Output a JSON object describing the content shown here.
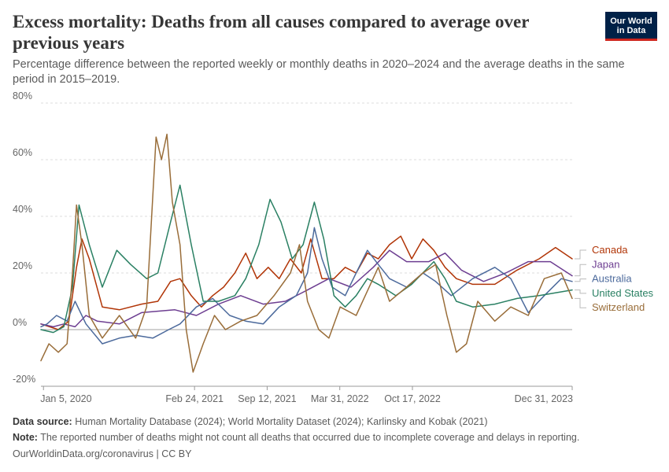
{
  "header": {
    "title": "Excess mortality: Deaths from all causes compared to average over previous years",
    "subtitle": "Percentage difference between the reported weekly or monthly deaths in 2020–2024 and the average deaths in the same period in 2015–2019.",
    "logo_line1": "Our World",
    "logo_line2": "in Data"
  },
  "footer": {
    "source_label": "Data source:",
    "source_text": "Human Mortality Database (2024); World Mortality Dataset (2024); Karlinsky and Kobak (2021)",
    "note_label": "Note:",
    "note_text": "The reported number of deaths might not count all deaths that occurred due to incomplete coverage and delays in reporting.",
    "url": "OurWorldinData.org/coronavirus",
    "license": "| CC BY"
  },
  "colors": {
    "logo_bg": "#002147",
    "logo_accent": "#ce261e",
    "grid": "#dddddd",
    "zero_line": "#a1a1a1"
  },
  "chart_data": {
    "type": "line",
    "title": "Excess mortality: Deaths from all causes compared to average over previous years",
    "ylabel": "",
    "xlabel": "",
    "y_unit": "%",
    "ylim": [
      -20,
      80
    ],
    "y_ticks": [
      -20,
      0,
      20,
      40,
      60,
      80
    ],
    "y_tick_labels": [
      "-20%",
      "0%",
      "20%",
      "40%",
      "60%",
      "80%"
    ],
    "xlim": [
      "2019-12-29",
      "2023-12-31"
    ],
    "x_ticks": [
      "2020-01-05",
      "2021-02-24",
      "2021-09-12",
      "2022-03-31",
      "2022-10-17",
      "2023-12-31"
    ],
    "x_tick_labels": [
      "Jan 5, 2020",
      "Feb 24, 2021",
      "Sep 12, 2021",
      "Mar 31, 2022",
      "Oct 17, 2022",
      "Dec 31, 2023"
    ],
    "grid": "horizontal dashed",
    "legend": "right, labels at line ends",
    "series": [
      {
        "name": "Canada",
        "color": "#b13507",
        "points": [
          [
            "2019-12-29",
            2
          ],
          [
            "2020-02-15",
            0
          ],
          [
            "2020-03-15",
            3
          ],
          [
            "2020-04-05",
            22
          ],
          [
            "2020-04-20",
            32
          ],
          [
            "2020-05-10",
            25
          ],
          [
            "2020-06-15",
            8
          ],
          [
            "2020-08-01",
            7
          ],
          [
            "2020-10-01",
            9
          ],
          [
            "2020-11-15",
            10
          ],
          [
            "2020-12-20",
            17
          ],
          [
            "2021-01-15",
            18
          ],
          [
            "2021-02-15",
            12
          ],
          [
            "2021-03-15",
            8
          ],
          [
            "2021-04-15",
            12
          ],
          [
            "2021-05-15",
            15
          ],
          [
            "2021-06-15",
            20
          ],
          [
            "2021-07-15",
            27
          ],
          [
            "2021-08-15",
            18
          ],
          [
            "2021-09-15",
            22
          ],
          [
            "2021-10-15",
            18
          ],
          [
            "2021-11-15",
            25
          ],
          [
            "2021-12-15",
            20
          ],
          [
            "2022-01-10",
            32
          ],
          [
            "2022-02-10",
            18
          ],
          [
            "2022-03-15",
            18
          ],
          [
            "2022-04-15",
            22
          ],
          [
            "2022-05-15",
            20
          ],
          [
            "2022-06-15",
            27
          ],
          [
            "2022-07-15",
            25
          ],
          [
            "2022-08-15",
            30
          ],
          [
            "2022-09-15",
            33
          ],
          [
            "2022-10-15",
            25
          ],
          [
            "2022-11-15",
            32
          ],
          [
            "2022-12-15",
            28
          ],
          [
            "2023-01-15",
            22
          ],
          [
            "2023-02-15",
            18
          ],
          [
            "2023-04-01",
            16
          ],
          [
            "2023-06-01",
            16
          ],
          [
            "2023-08-01",
            21
          ],
          [
            "2023-10-01",
            25
          ],
          [
            "2023-11-15",
            29
          ],
          [
            "2023-12-31",
            25
          ]
        ]
      },
      {
        "name": "Japan",
        "color": "#6d3e91",
        "points": [
          [
            "2019-12-29",
            2
          ],
          [
            "2020-02-01",
            1
          ],
          [
            "2020-03-01",
            2
          ],
          [
            "2020-04-01",
            1
          ],
          [
            "2020-05-01",
            5
          ],
          [
            "2020-06-01",
            3
          ],
          [
            "2020-08-01",
            2
          ],
          [
            "2020-10-01",
            6
          ],
          [
            "2021-01-01",
            7
          ],
          [
            "2021-03-01",
            5
          ],
          [
            "2021-05-01",
            9
          ],
          [
            "2021-07-01",
            12
          ],
          [
            "2021-09-01",
            9
          ],
          [
            "2021-11-01",
            10
          ],
          [
            "2022-01-01",
            14
          ],
          [
            "2022-03-01",
            18
          ],
          [
            "2022-05-01",
            15
          ],
          [
            "2022-07-01",
            22
          ],
          [
            "2022-08-15",
            28
          ],
          [
            "2022-10-01",
            24
          ],
          [
            "2022-12-01",
            24
          ],
          [
            "2023-01-15",
            27
          ],
          [
            "2023-03-01",
            21
          ],
          [
            "2023-05-01",
            17
          ],
          [
            "2023-07-01",
            20
          ],
          [
            "2023-09-01",
            24
          ],
          [
            "2023-11-01",
            24
          ],
          [
            "2023-12-31",
            19
          ]
        ]
      },
      {
        "name": "Australia",
        "color": "#4c6a9c",
        "points": [
          [
            "2019-12-29",
            1
          ],
          [
            "2020-01-15",
            2
          ],
          [
            "2020-02-10",
            5
          ],
          [
            "2020-03-10",
            3
          ],
          [
            "2020-04-01",
            10
          ],
          [
            "2020-05-01",
            2
          ],
          [
            "2020-06-15",
            -5
          ],
          [
            "2020-08-01",
            -3
          ],
          [
            "2020-09-15",
            -2
          ],
          [
            "2020-11-01",
            -3
          ],
          [
            "2020-12-15",
            0
          ],
          [
            "2021-01-15",
            2
          ],
          [
            "2021-03-01",
            8
          ],
          [
            "2021-04-15",
            11
          ],
          [
            "2021-06-01",
            5
          ],
          [
            "2021-07-15",
            3
          ],
          [
            "2021-09-01",
            2
          ],
          [
            "2021-10-15",
            8
          ],
          [
            "2021-12-01",
            12
          ],
          [
            "2022-01-01",
            20
          ],
          [
            "2022-01-20",
            36
          ],
          [
            "2022-02-10",
            25
          ],
          [
            "2022-03-10",
            15
          ],
          [
            "2022-04-15",
            12
          ],
          [
            "2022-05-15",
            20
          ],
          [
            "2022-06-15",
            28
          ],
          [
            "2022-07-15",
            23
          ],
          [
            "2022-08-15",
            18
          ],
          [
            "2022-10-01",
            15
          ],
          [
            "2022-11-15",
            20
          ],
          [
            "2022-12-20",
            17
          ],
          [
            "2023-02-01",
            12
          ],
          [
            "2023-04-01",
            18
          ],
          [
            "2023-06-01",
            22
          ],
          [
            "2023-07-15",
            18
          ],
          [
            "2023-09-01",
            6
          ],
          [
            "2023-10-15",
            12
          ],
          [
            "2023-12-01",
            18
          ],
          [
            "2023-12-31",
            17
          ]
        ]
      },
      {
        "name": "United States",
        "color": "#2a8063",
        "points": [
          [
            "2019-12-29",
            0
          ],
          [
            "2020-02-01",
            -1
          ],
          [
            "2020-03-01",
            1
          ],
          [
            "2020-03-25",
            15
          ],
          [
            "2020-04-12",
            44
          ],
          [
            "2020-05-10",
            30
          ],
          [
            "2020-06-15",
            15
          ],
          [
            "2020-07-25",
            28
          ],
          [
            "2020-09-01",
            23
          ],
          [
            "2020-10-15",
            18
          ],
          [
            "2020-11-15",
            20
          ],
          [
            "2020-12-20",
            38
          ],
          [
            "2021-01-15",
            51
          ],
          [
            "2021-02-15",
            30
          ],
          [
            "2021-03-20",
            10
          ],
          [
            "2021-05-01",
            10
          ],
          [
            "2021-06-15",
            12
          ],
          [
            "2021-07-15",
            18
          ],
          [
            "2021-08-20",
            30
          ],
          [
            "2021-09-20",
            46
          ],
          [
            "2021-10-20",
            38
          ],
          [
            "2021-11-20",
            25
          ],
          [
            "2021-12-20",
            30
          ],
          [
            "2022-01-20",
            45
          ],
          [
            "2022-02-15",
            32
          ],
          [
            "2022-03-15",
            12
          ],
          [
            "2022-04-15",
            8
          ],
          [
            "2022-05-15",
            12
          ],
          [
            "2022-06-15",
            18
          ],
          [
            "2022-07-15",
            16
          ],
          [
            "2022-09-01",
            12
          ],
          [
            "2022-10-15",
            16
          ],
          [
            "2022-12-15",
            24
          ],
          [
            "2023-01-15",
            18
          ],
          [
            "2023-02-15",
            10
          ],
          [
            "2023-04-01",
            8
          ],
          [
            "2023-06-01",
            9
          ],
          [
            "2023-08-01",
            11
          ],
          [
            "2023-10-01",
            12
          ],
          [
            "2023-12-31",
            14
          ]
        ]
      },
      {
        "name": "Switzerland",
        "color": "#996d39",
        "points": [
          [
            "2019-12-29",
            -11
          ],
          [
            "2020-01-20",
            -5
          ],
          [
            "2020-02-15",
            -8
          ],
          [
            "2020-03-10",
            -5
          ],
          [
            "2020-03-25",
            20
          ],
          [
            "2020-04-05",
            44
          ],
          [
            "2020-04-20",
            30
          ],
          [
            "2020-05-10",
            5
          ],
          [
            "2020-06-15",
            -3
          ],
          [
            "2020-08-01",
            5
          ],
          [
            "2020-09-15",
            -3
          ],
          [
            "2020-10-15",
            8
          ],
          [
            "2020-11-10",
            68
          ],
          [
            "2020-11-25",
            60
          ],
          [
            "2020-12-10",
            69
          ],
          [
            "2020-12-25",
            45
          ],
          [
            "2021-01-15",
            30
          ],
          [
            "2021-02-01",
            0
          ],
          [
            "2021-02-20",
            -15
          ],
          [
            "2021-03-20",
            -5
          ],
          [
            "2021-04-20",
            5
          ],
          [
            "2021-05-20",
            0
          ],
          [
            "2021-07-01",
            3
          ],
          [
            "2021-08-15",
            5
          ],
          [
            "2021-10-01",
            12
          ],
          [
            "2021-11-15",
            20
          ],
          [
            "2021-12-10",
            30
          ],
          [
            "2022-01-01",
            10
          ],
          [
            "2022-02-01",
            0
          ],
          [
            "2022-03-01",
            -3
          ],
          [
            "2022-04-01",
            8
          ],
          [
            "2022-05-15",
            5
          ],
          [
            "2022-07-15",
            22
          ],
          [
            "2022-08-15",
            10
          ],
          [
            "2022-10-01",
            15
          ],
          [
            "2022-11-15",
            20
          ],
          [
            "2022-12-20",
            23
          ],
          [
            "2023-01-20",
            5
          ],
          [
            "2023-02-15",
            -8
          ],
          [
            "2023-03-15",
            -5
          ],
          [
            "2023-04-15",
            10
          ],
          [
            "2023-06-01",
            3
          ],
          [
            "2023-07-15",
            8
          ],
          [
            "2023-09-01",
            5
          ],
          [
            "2023-10-15",
            18
          ],
          [
            "2023-12-01",
            20
          ],
          [
            "2023-12-31",
            11
          ]
        ]
      }
    ]
  }
}
